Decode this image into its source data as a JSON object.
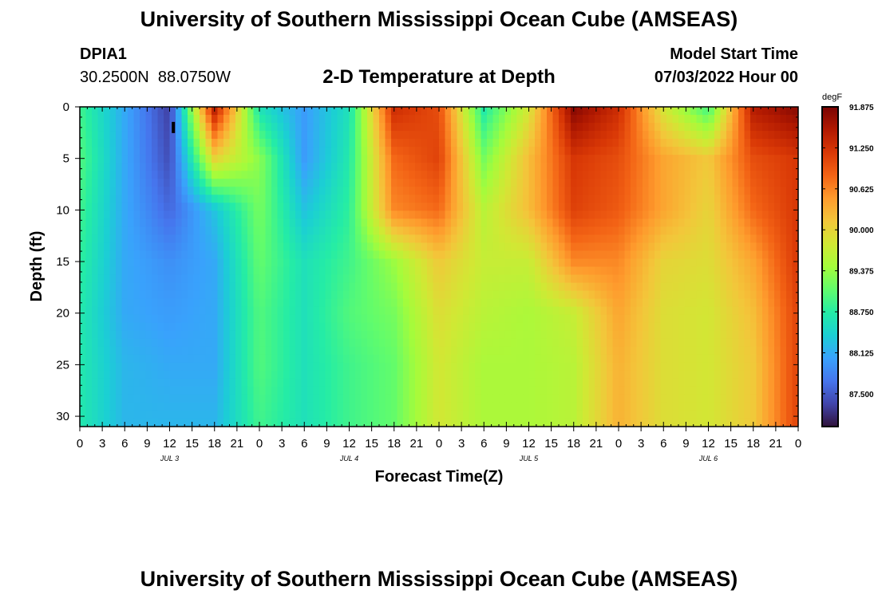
{
  "header": {
    "title": "University of Southern Mississippi Ocean Cube (AMSEAS)",
    "station_id": "DPIA1",
    "coordinates": "30.2500N  88.0750W",
    "subtitle": "2-D Temperature at Depth",
    "model_start_label": "Model Start Time",
    "model_start_value": "07/03/2022 Hour 00"
  },
  "footer": {
    "title_repeat": "University of Southern Mississippi Ocean Cube (AMSEAS)"
  },
  "chart_data": {
    "type": "heatmap",
    "title": "2-D Temperature at Depth",
    "xlabel": "Forecast Time(Z)",
    "ylabel": "Depth (ft)",
    "colorbar_unit": "degF",
    "x_hours": [
      0,
      6,
      12,
      18,
      24,
      30,
      36,
      42,
      48,
      54,
      60,
      66,
      72,
      78,
      84,
      90,
      96
    ],
    "depths_ft": [
      0,
      5,
      10,
      15,
      20,
      25,
      31
    ],
    "values": [
      [
        88.9,
        88.1,
        87.3,
        91.5,
        88.6,
        88.0,
        88.6,
        91.3,
        91.0,
        88.7,
        89.8,
        91.8,
        91.3,
        89.8,
        88.9,
        91.5,
        91.8
      ],
      [
        89.0,
        88.1,
        87.4,
        90.0,
        89.3,
        88.0,
        88.7,
        90.8,
        91.1,
        89.2,
        90.2,
        91.2,
        91.0,
        90.4,
        90.1,
        91.0,
        91.2
      ],
      [
        88.9,
        88.1,
        87.6,
        88.3,
        89.2,
        88.3,
        88.8,
        90.6,
        90.8,
        89.6,
        90.2,
        91.1,
        90.9,
        90.4,
        90.0,
        90.8,
        91.2
      ],
      [
        88.8,
        88.1,
        87.9,
        88.1,
        89.1,
        88.6,
        88.9,
        89.4,
        90.1,
        89.7,
        89.7,
        90.6,
        90.6,
        90.0,
        89.9,
        90.4,
        91.2
      ],
      [
        88.7,
        88.1,
        88.0,
        88.1,
        89.0,
        88.6,
        89.0,
        89.2,
        89.9,
        89.6,
        89.5,
        89.7,
        90.4,
        89.9,
        89.8,
        90.2,
        91.1
      ],
      [
        88.7,
        88.2,
        88.1,
        88.1,
        89.0,
        88.6,
        88.9,
        89.1,
        89.8,
        89.5,
        89.5,
        89.6,
        90.3,
        89.9,
        89.8,
        90.1,
        91.1
      ],
      [
        88.7,
        88.2,
        88.2,
        88.2,
        88.9,
        88.6,
        88.9,
        89.1,
        89.8,
        89.5,
        89.5,
        89.6,
        90.3,
        89.9,
        89.8,
        90.1,
        91.1
      ]
    ],
    "vmin": 87.0,
    "vmax": 91.875,
    "colorbar_ticks": [
      "91.875",
      "91.250",
      "90.625",
      "90.000",
      "89.375",
      "88.750",
      "88.125",
      "87.500"
    ],
    "colorbar_tick_values": [
      91.875,
      91.25,
      90.625,
      90.0,
      89.375,
      88.75,
      88.125,
      87.5
    ],
    "x_tick_labels": [
      "0",
      "3",
      "6",
      "9",
      "12",
      "15",
      "18",
      "21",
      "0",
      "3",
      "6",
      "9",
      "12",
      "15",
      "18",
      "21",
      "0",
      "3",
      "6",
      "9",
      "12",
      "15",
      "18",
      "21",
      "0",
      "3",
      "6",
      "9",
      "12",
      "15",
      "18",
      "21",
      "0"
    ],
    "y_ticks": [
      0,
      5,
      10,
      15,
      20,
      25,
      30
    ],
    "y_tick_labels": [
      "0",
      "5",
      "10",
      "15",
      "20",
      "25",
      "30"
    ],
    "ylim": [
      0,
      31
    ],
    "xlim": [
      0,
      96
    ],
    "day_labels": [
      "JUL 3",
      "JUL 4",
      "JUL 5",
      "JUL 6"
    ],
    "day_label_hours": [
      12,
      36,
      60,
      84
    ],
    "colormap": [
      "#30123b",
      "#4145ab",
      "#4675ed",
      "#39a2fc",
      "#1bcfd4",
      "#24eca6",
      "#61fc6c",
      "#a4fc3b",
      "#d1e834",
      "#f3c63a",
      "#fe9b2d",
      "#f36315",
      "#d93806",
      "#b11901",
      "#7a0403"
    ],
    "marker": {
      "hour": 12.5,
      "depth_ft": 2.0
    }
  }
}
